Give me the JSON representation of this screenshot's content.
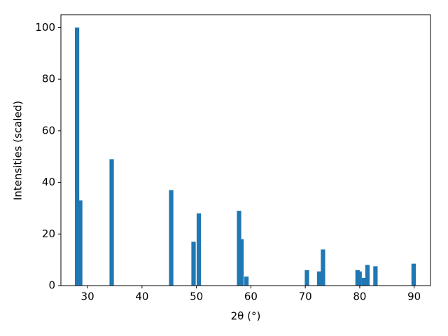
{
  "chart_data": {
    "type": "bar",
    "x": [
      28.07,
      28.65,
      34.43,
      45.36,
      49.47,
      50.44,
      57.83,
      58.28,
      59.18,
      70.3,
      72.55,
      73.25,
      79.6,
      79.98,
      80.77,
      81.41,
      82.89,
      89.9
    ],
    "values": [
      100,
      33,
      49,
      37,
      17,
      28,
      29,
      18,
      3.5,
      6,
      5.5,
      14,
      6,
      5.5,
      3,
      8,
      7.5,
      8.5
    ],
    "color": "#1f77b4",
    "x_label": "2θ (°)",
    "y_label": "Intensities (scaled)",
    "xlim": [
      25.1,
      93.0
    ],
    "xticks": [
      30,
      40,
      50,
      60,
      70,
      80,
      90
    ],
    "ylim": [
      0,
      105
    ],
    "yticks": [
      0,
      20,
      40,
      60,
      80,
      100
    ],
    "grid": false
  }
}
